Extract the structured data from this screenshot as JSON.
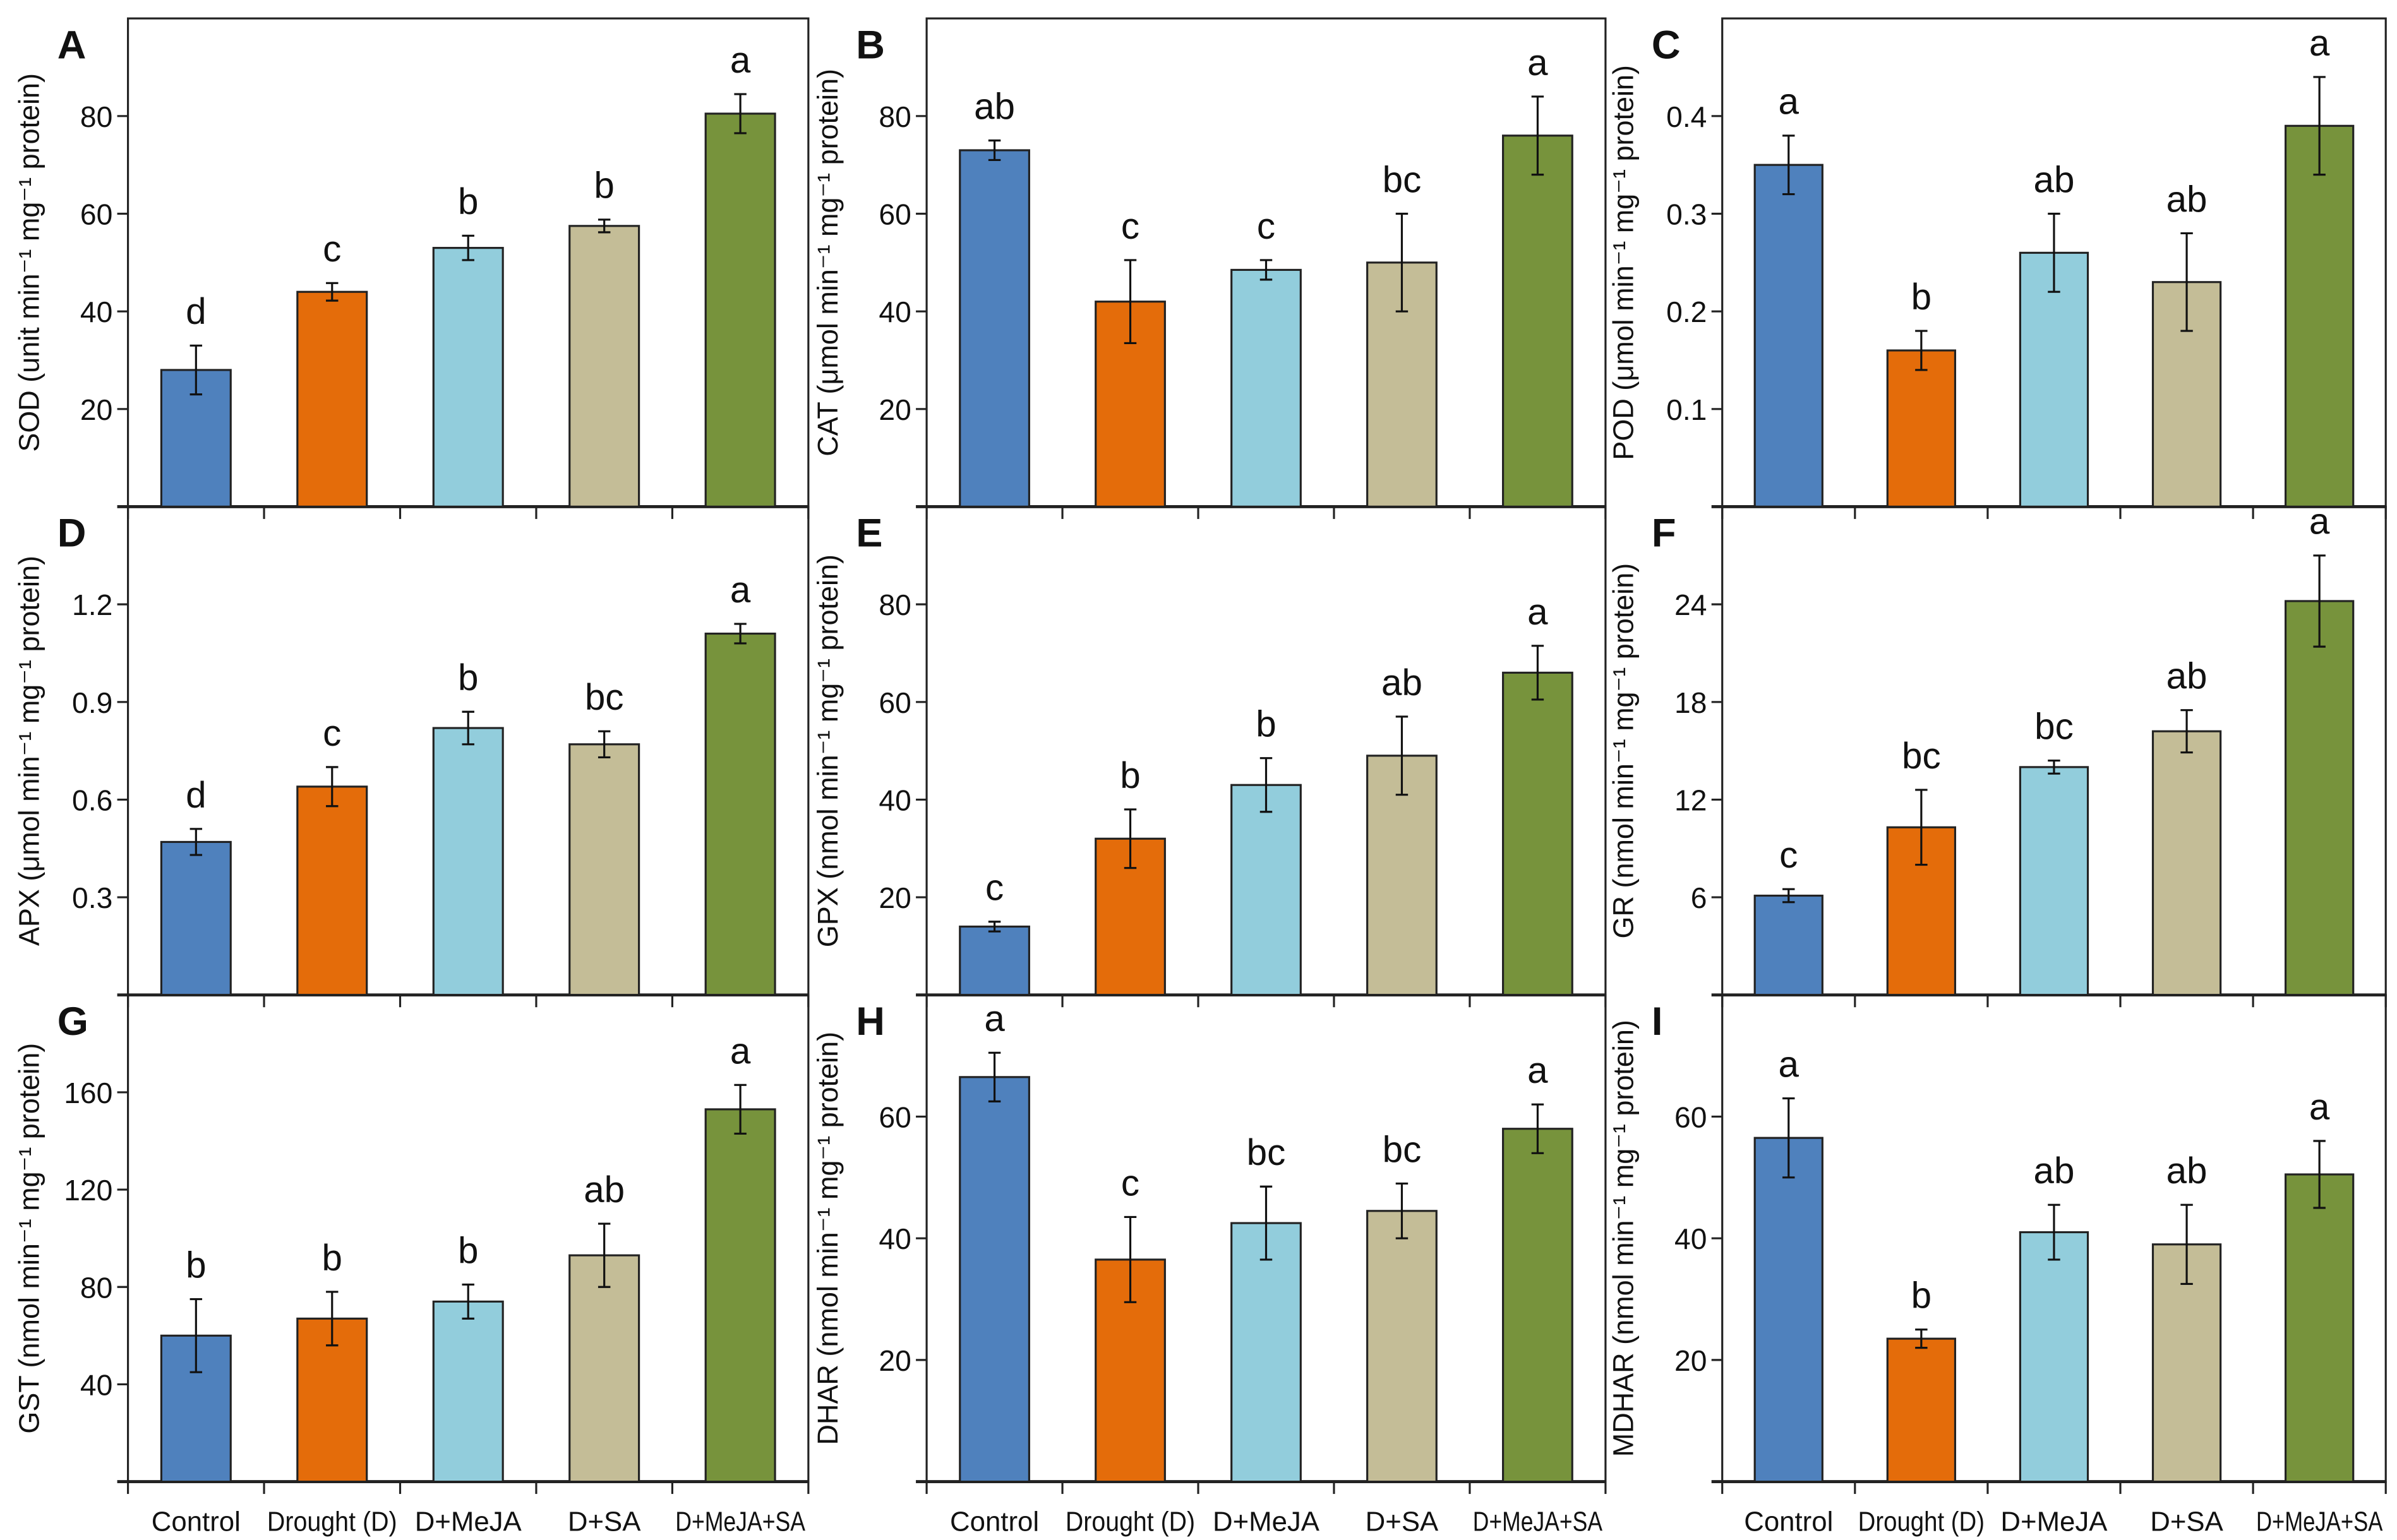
{
  "chart_data": [
    {
      "type": "bar",
      "panel": "A",
      "ylabel": "SOD (unit min⁻¹ mg⁻¹ protein)",
      "ylim": [
        0,
        100
      ],
      "yticks": [
        20,
        40,
        60,
        80
      ],
      "ytick_labels": [
        "20",
        "40",
        "60",
        "80"
      ],
      "values": [
        28,
        44,
        53,
        57.5,
        80.5
      ],
      "errors": [
        5,
        1.8,
        2.5,
        1.3,
        4
      ],
      "letters": [
        "d",
        "c",
        "b",
        "b",
        "a"
      ]
    },
    {
      "type": "bar",
      "panel": "B",
      "ylabel": "CAT (μmol min⁻¹ mg⁻¹ protein)",
      "ylim": [
        0,
        100
      ],
      "yticks": [
        20,
        40,
        60,
        80
      ],
      "ytick_labels": [
        "20",
        "40",
        "60",
        "80"
      ],
      "values": [
        73,
        42,
        48.5,
        50,
        76
      ],
      "errors": [
        2,
        8.5,
        2,
        10,
        8
      ],
      "letters": [
        "ab",
        "c",
        "c",
        "bc",
        "a"
      ]
    },
    {
      "type": "bar",
      "panel": "C",
      "ylabel": "POD (μmol min⁻¹ mg⁻¹ protein)",
      "ylim": [
        0,
        0.5
      ],
      "yticks": [
        0.1,
        0.2,
        0.3,
        0.4
      ],
      "ytick_labels": [
        "0.1",
        "0.2",
        "0.3",
        "0.4"
      ],
      "values": [
        0.35,
        0.16,
        0.26,
        0.23,
        0.39
      ],
      "errors": [
        0.03,
        0.02,
        0.04,
        0.05,
        0.05
      ],
      "letters": [
        "a",
        "b",
        "ab",
        "ab",
        "a"
      ]
    },
    {
      "type": "bar",
      "panel": "D",
      "ylabel": "APX (μmol min⁻¹ mg⁻¹ protein)",
      "ylim": [
        0,
        1.5
      ],
      "yticks": [
        0.3,
        0.6,
        0.9,
        1.2
      ],
      "ytick_labels": [
        "0.3",
        "0.6",
        "0.9",
        "1.2"
      ],
      "values": [
        0.47,
        0.64,
        0.82,
        0.77,
        1.11
      ],
      "errors": [
        0.04,
        0.06,
        0.05,
        0.04,
        0.03
      ],
      "letters": [
        "d",
        "c",
        "b",
        "bc",
        "a"
      ]
    },
    {
      "type": "bar",
      "panel": "E",
      "ylabel": "GPX (nmol min⁻¹ mg⁻¹ protein)",
      "ylim": [
        0,
        100
      ],
      "yticks": [
        20,
        40,
        60,
        80
      ],
      "ytick_labels": [
        "20",
        "40",
        "60",
        "80"
      ],
      "values": [
        14,
        32,
        43,
        49,
        66
      ],
      "errors": [
        1,
        6,
        5.5,
        8,
        5.5
      ],
      "letters": [
        "c",
        "b",
        "b",
        "ab",
        "a"
      ]
    },
    {
      "type": "bar",
      "panel": "F",
      "ylabel": "GR (nmol min⁻¹ mg⁻¹ protein)",
      "ylim": [
        0,
        30
      ],
      "yticks": [
        6,
        12,
        18,
        24
      ],
      "ytick_labels": [
        "6",
        "12",
        "18",
        "24"
      ],
      "values": [
        6.1,
        10.3,
        14,
        16.2,
        24.2
      ],
      "errors": [
        0.4,
        2.3,
        0.4,
        1.3,
        2.8
      ],
      "letters": [
        "c",
        "bc",
        "bc",
        "ab",
        "a"
      ]
    },
    {
      "type": "bar",
      "panel": "G",
      "ylabel": "GST (nmol min⁻¹ mg⁻¹ protein)",
      "ylim": [
        0,
        200
      ],
      "yticks": [
        40,
        80,
        120,
        160
      ],
      "ytick_labels": [
        "40",
        "80",
        "120",
        "160"
      ],
      "values": [
        60,
        67,
        74,
        93,
        153
      ],
      "errors": [
        15,
        11,
        7,
        13,
        10
      ],
      "letters": [
        "b",
        "b",
        "b",
        "ab",
        "a"
      ]
    },
    {
      "type": "bar",
      "panel": "H",
      "ylabel": "DHAR (nmol min⁻¹ mg⁻¹ protein)",
      "ylim": [
        0,
        80
      ],
      "yticks": [
        20,
        40,
        60
      ],
      "ytick_labels": [
        "20",
        "40",
        "60"
      ],
      "values": [
        66.5,
        36.5,
        42.5,
        44.5,
        58
      ],
      "errors": [
        4,
        7,
        6,
        4.5,
        4
      ],
      "letters": [
        "a",
        "c",
        "bc",
        "bc",
        "a"
      ]
    },
    {
      "type": "bar",
      "panel": "I",
      "ylabel": "MDHAR (nmol min⁻¹ mg⁻¹ protein)",
      "ylim": [
        0,
        80
      ],
      "yticks": [
        20,
        40,
        60
      ],
      "ytick_labels": [
        "20",
        "40",
        "60"
      ],
      "values": [
        56.5,
        23.5,
        41,
        39,
        50.5
      ],
      "errors": [
        6.5,
        1.5,
        4.5,
        6.5,
        5.5
      ],
      "letters": [
        "a",
        "b",
        "ab",
        "ab",
        "a"
      ]
    }
  ],
  "categories": [
    "Control",
    "Drought (D)",
    "D+MeJA",
    "D+SA",
    "D+MeJA+SA"
  ],
  "colors": [
    "#4F81BD",
    "#E46C0A",
    "#92CDDC",
    "#C4BD97",
    "#77933C"
  ]
}
